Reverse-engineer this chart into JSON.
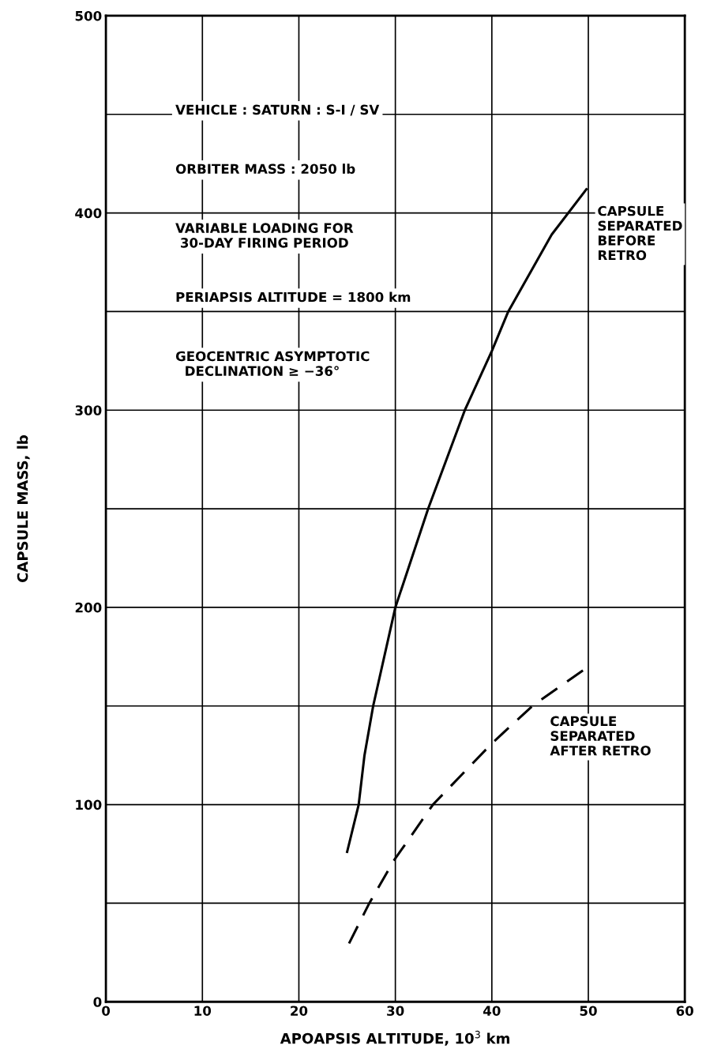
{
  "chart_data": {
    "type": "line",
    "xlabel": "APOAPSIS ALTITUDE, 10$^{3}$ km",
    "ylabel": "CAPSULE MASS, lb",
    "xlim": [
      0,
      60
    ],
    "ylim": [
      0,
      500
    ],
    "xticks": [
      0,
      10,
      20,
      30,
      40,
      50,
      60
    ],
    "yticks": [
      0,
      {
        "value": 50,
        "label": null
      },
      100,
      {
        "value": 150,
        "label": null
      },
      200,
      {
        "value": 250,
        "label": null
      },
      300,
      {
        "value": 350,
        "label": null
      },
      400,
      {
        "value": 450,
        "label": null
      },
      500
    ],
    "grid": true,
    "marker": "none",
    "series": [
      {
        "name": "CAPSULE\nSEPARATED\nBEFORE\nRETRO",
        "color": "#000000",
        "line_style": "solid",
        "x": [
          25.0,
          26.2,
          26.8,
          27.7,
          30.0,
          33.4,
          37.2,
          40.0,
          41.7,
          46.2,
          49.8
        ],
        "values": [
          76,
          100,
          125,
          150,
          200,
          250,
          300,
          330,
          350,
          389,
          412
        ]
      },
      {
        "name": "CAPSULE\nSEPARATED\nAFTER RETRO",
        "color": "#000000",
        "line_style": "dashed",
        "x": [
          25.2,
          27.3,
          29.9,
          33.9,
          40.0,
          44.2,
          50.0
        ],
        "values": [
          29.6,
          50,
          72,
          100,
          131,
          150,
          170
        ]
      }
    ],
    "annotations": [
      "VEHICLE : SATURN : S-I / SV",
      "ORBITER MASS : 2050 lb",
      "VARIABLE LOADING FOR\n 30-DAY FIRING PERIOD",
      "PERIAPSIS ALTITUDE = 1800 km",
      "GEOCENTRIC ASYMPTOTIC\n  DECLINATION ≥ −36°"
    ]
  }
}
